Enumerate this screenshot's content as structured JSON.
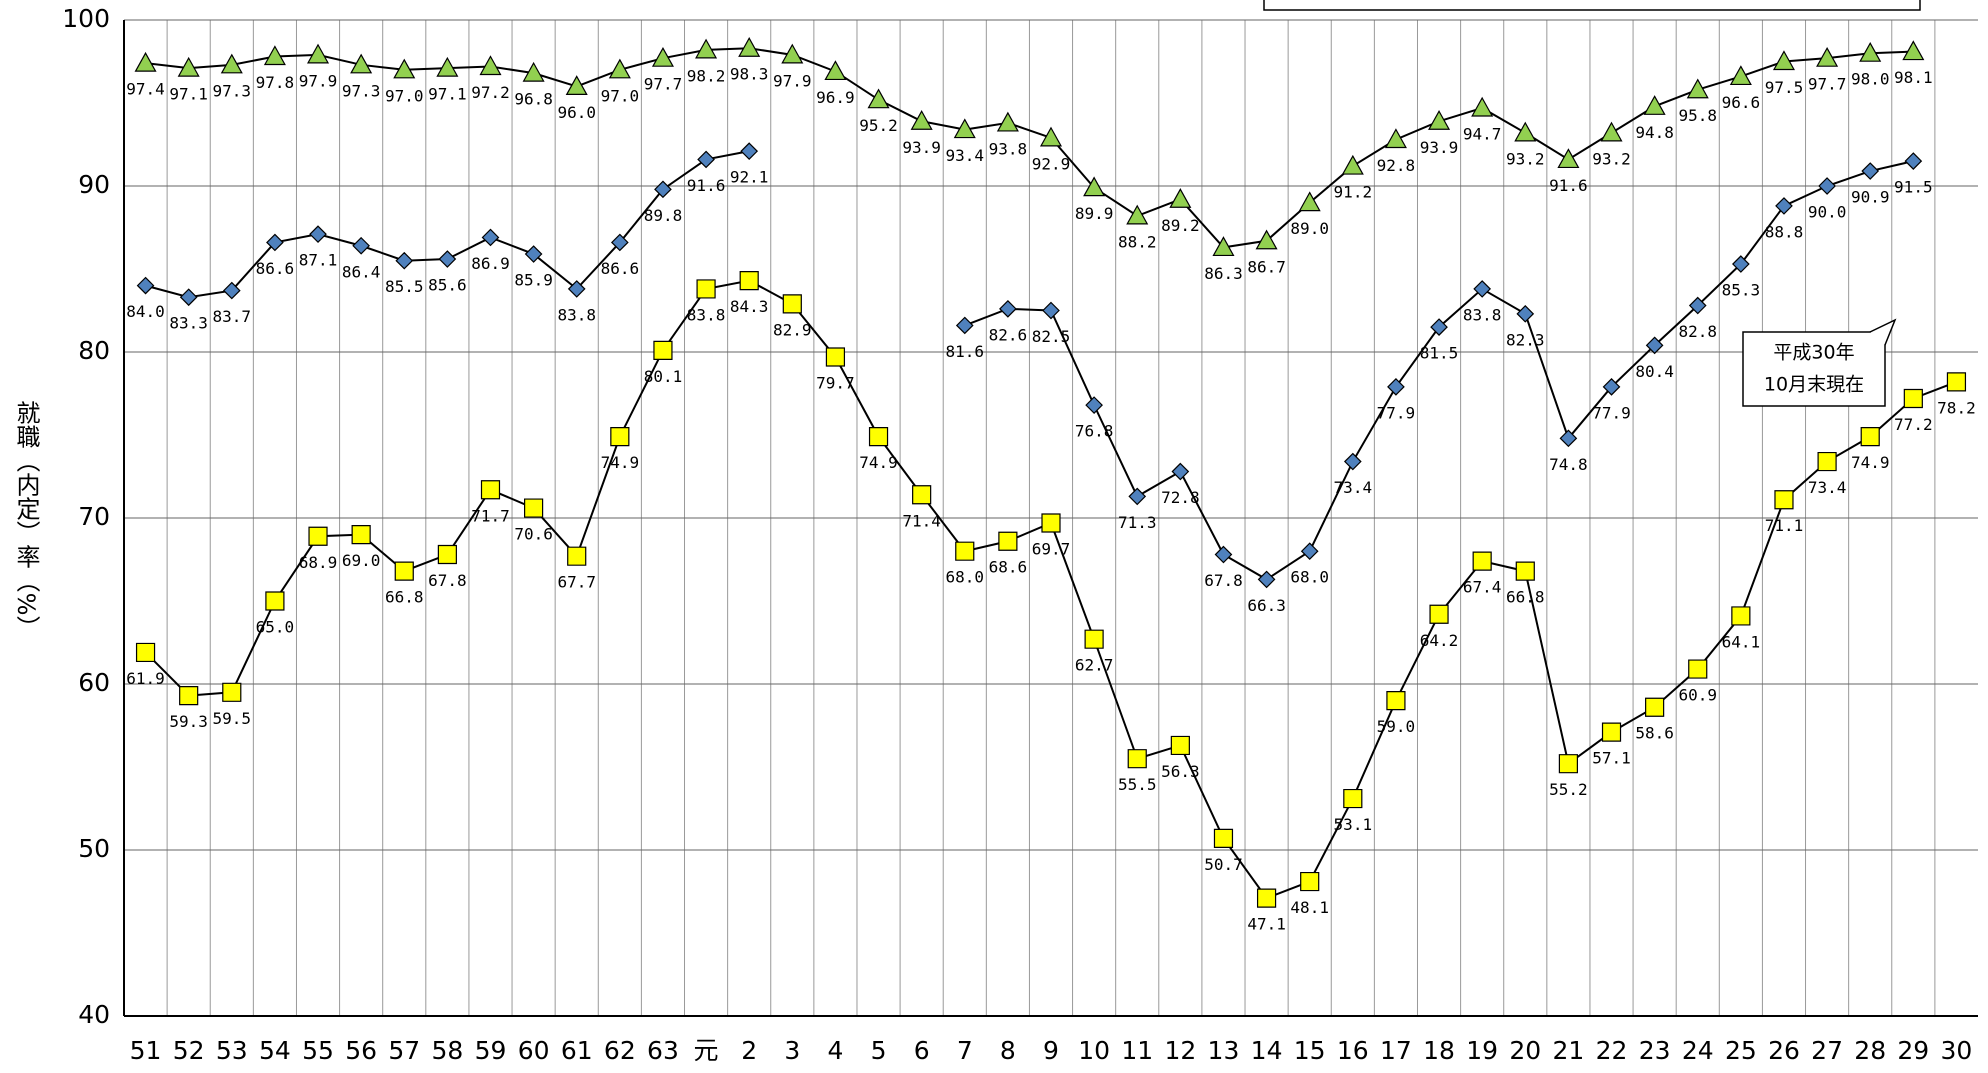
{
  "chart_data": {
    "type": "line",
    "y_label": "就職（内定）率（%）",
    "annotation": [
      "平成30年",
      "10月末現在"
    ],
    "categories": [
      "51",
      "52",
      "53",
      "54",
      "55",
      "56",
      "57",
      "58",
      "59",
      "60",
      "61",
      "62",
      "63",
      "元",
      "2",
      "3",
      "4",
      "5",
      "6",
      "7",
      "8",
      "9",
      "10",
      "11",
      "12",
      "13",
      "14",
      "15",
      "16",
      "17",
      "18",
      "19",
      "20",
      "21",
      "22",
      "23",
      "24",
      "25",
      "26",
      "27",
      "28",
      "29",
      "30"
    ],
    "series": [
      {
        "color": "#92d050",
        "marker": "triangle",
        "values": [
          97.4,
          97.1,
          97.3,
          97.8,
          97.9,
          97.3,
          97.0,
          97.1,
          97.2,
          96.8,
          96.0,
          97.0,
          97.7,
          98.2,
          98.3,
          97.9,
          96.9,
          95.2,
          93.9,
          93.4,
          93.8,
          92.9,
          89.9,
          88.2,
          89.2,
          86.3,
          86.7,
          89.0,
          91.2,
          92.8,
          93.9,
          94.7,
          93.2,
          91.6,
          93.2,
          94.8,
          95.8,
          96.6,
          97.5,
          97.7,
          98.0,
          98.1,
          null
        ],
        "value_labels": [
          "97.4",
          "97.1",
          "97.3",
          "97.8",
          "97.9",
          "97.3",
          "97.0",
          "97.1",
          "97.2",
          "96.8",
          "96.0",
          "97.0",
          "97.7",
          "98.2",
          "98.3",
          "97.9",
          "96.9",
          "95.2",
          "93.9",
          "93.4",
          "93.8",
          "92.9",
          "89.9",
          "88.2",
          "89.2",
          "86.3",
          "86.7",
          "89.0",
          "91.2",
          "92.8",
          "93.9",
          "94.7",
          "93.2",
          "91.6",
          "93.2",
          "94.8",
          "95.8",
          "96.6",
          "97.5",
          "97.7",
          "98.0",
          "98.1",
          null
        ]
      },
      {
        "color": "#4f81bd",
        "marker": "diamond",
        "values": [
          84.0,
          83.3,
          83.7,
          86.6,
          87.1,
          86.4,
          85.5,
          85.6,
          86.9,
          85.9,
          83.8,
          86.6,
          89.8,
          91.6,
          92.1,
          null,
          null,
          null,
          null,
          81.6,
          82.6,
          82.5,
          76.8,
          71.3,
          72.8,
          67.8,
          66.3,
          68.0,
          73.4,
          77.9,
          81.5,
          83.8,
          82.3,
          74.8,
          77.9,
          80.4,
          82.8,
          85.3,
          88.8,
          90.0,
          90.9,
          91.5,
          null
        ],
        "value_labels": [
          "84.0",
          "83.3",
          "83.7",
          "86.6",
          "87.1",
          "86.4",
          "85.5",
          "85.6",
          "86.9",
          "85.9",
          "83.8",
          "86.6",
          "89.8",
          "91.6",
          "92.1",
          null,
          null,
          null,
          null,
          "81.6",
          "82.6",
          "82.5",
          "76.8",
          "71.3",
          "72.8",
          "67.8",
          "66.3",
          "68.0",
          "73.4",
          "77.9",
          "81.5",
          "83.8",
          "82.3",
          "74.8",
          "77.9",
          "80.4",
          "82.8",
          "85.3",
          "88.8",
          "90.0",
          "90.9",
          "91.5",
          null
        ]
      },
      {
        "color": "#ffff00",
        "marker": "square",
        "values": [
          61.9,
          59.3,
          59.5,
          65.0,
          68.9,
          69.0,
          66.8,
          67.8,
          71.7,
          70.6,
          67.7,
          74.9,
          80.1,
          83.8,
          84.3,
          82.9,
          79.7,
          74.9,
          71.4,
          68.0,
          68.6,
          69.7,
          62.7,
          55.5,
          56.3,
          50.7,
          47.1,
          48.1,
          53.1,
          59.0,
          64.2,
          67.4,
          66.8,
          55.2,
          57.1,
          58.6,
          60.9,
          64.1,
          71.1,
          73.4,
          74.9,
          77.2,
          78.2
        ],
        "value_labels": [
          "61.9",
          "59.3",
          "59.5",
          "65.0",
          "68.9",
          "69.0",
          "66.8",
          "67.8",
          "71.7",
          "70.6",
          "67.7",
          "74.9",
          "80.1",
          "83.8",
          "84.3",
          "82.9",
          "79.7",
          "74.9",
          "71.4",
          "68.0",
          "68.6",
          "69.7",
          "62.7",
          "55.5",
          "56.3",
          "50.7",
          "47.1",
          "48.1",
          "53.1",
          "59.0",
          "64.2",
          "67.4",
          "66.8",
          "55.2",
          "57.1",
          "58.6",
          "60.9",
          "64.1",
          "71.1",
          "73.4",
          "74.9",
          "77.2",
          "78.2"
        ]
      }
    ],
    "ylim": [
      40,
      100
    ],
    "yticks": [
      40,
      50,
      60,
      70,
      80,
      90,
      100
    ],
    "grid": true
  }
}
